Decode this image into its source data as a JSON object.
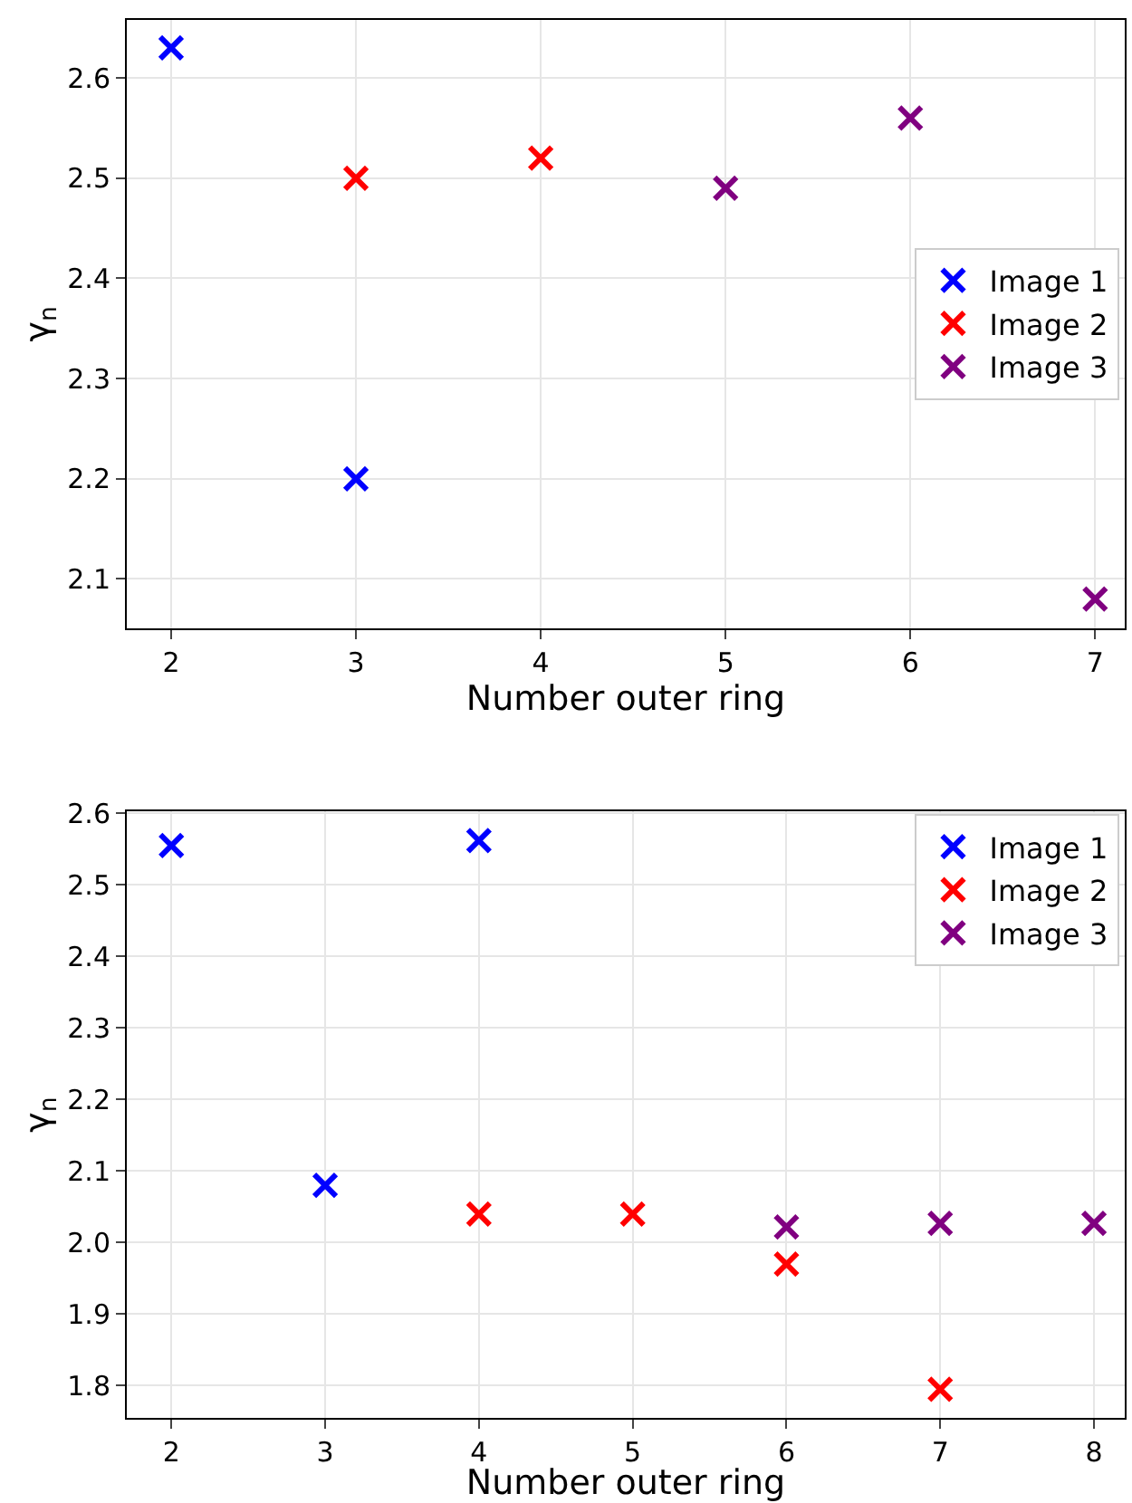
{
  "chart_data": [
    {
      "type": "scatter",
      "xlabel": "Number outer ring",
      "ylabel": "γ$_{n}$",
      "marker": "cross",
      "grid": true,
      "legend": "right",
      "xlim": [
        1.76,
        7.16
      ],
      "xticks": [
        2,
        3,
        4,
        5,
        6,
        7
      ],
      "ylim": [
        2.051,
        2.658
      ],
      "yticks": [
        2.1,
        2.2,
        2.3,
        2.4,
        2.5,
        2.6
      ],
      "series": [
        {
          "name": "Image 1",
          "color": "#0000ff",
          "x": [
            2,
            3
          ],
          "values": [
            2.63,
            2.2
          ]
        },
        {
          "name": "Image 2",
          "color": "#ff0000",
          "x": [
            3,
            4
          ],
          "values": [
            2.5,
            2.52
          ]
        },
        {
          "name": "Image 3",
          "color": "#800080",
          "x": [
            5,
            6,
            7
          ],
          "values": [
            2.49,
            2.56,
            2.08
          ]
        }
      ]
    },
    {
      "type": "scatter",
      "xlabel": "Number outer ring",
      "ylabel": "γ$_{n}$",
      "marker": "cross",
      "grid": true,
      "legend": "top right",
      "xlim": [
        1.71,
        8.2
      ],
      "xticks": [
        2,
        3,
        4,
        5,
        6,
        7,
        8
      ],
      "ylim": [
        1.755,
        2.603
      ],
      "yticks": [
        1.8,
        1.9,
        {
          "value": 2,
          "label": "2.0"
        },
        2.1,
        2.2,
        2.3,
        2.4,
        2.5,
        2.6
      ],
      "series": [
        {
          "name": "Image 1",
          "color": "#0000ff",
          "x": [
            2,
            3,
            4
          ],
          "values": [
            2.555,
            2.08,
            2.562
          ]
        },
        {
          "name": "Image 2",
          "color": "#ff0000",
          "x": [
            4,
            5,
            6,
            7
          ],
          "values": [
            2.04,
            2.04,
            1.97,
            1.795
          ]
        },
        {
          "name": "Image 3",
          "color": "#800080",
          "x": [
            6,
            7,
            8
          ],
          "values": [
            2.022,
            2.027,
            2.027
          ]
        }
      ]
    }
  ]
}
